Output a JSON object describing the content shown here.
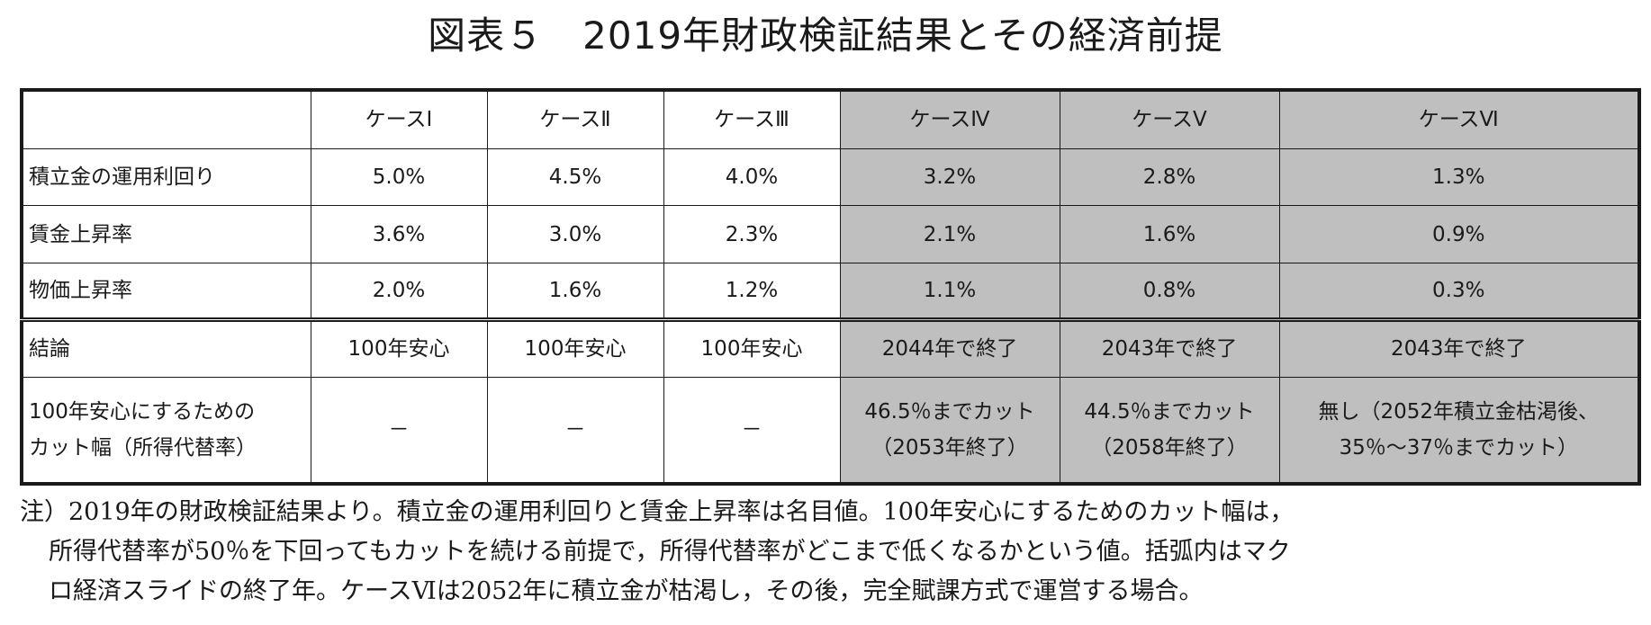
{
  "title": "図表５　2019年財政検証結果とその経済前提",
  "table": {
    "columns": [
      "",
      "ケースⅠ",
      "ケースⅡ",
      "ケースⅢ",
      "ケースⅣ",
      "ケースⅤ",
      "ケースⅥ"
    ],
    "rows": [
      {
        "label": "積立金の運用利回り",
        "values": [
          "5.0%",
          "4.5%",
          "4.0%",
          "3.2%",
          "2.8%",
          "1.3%"
        ]
      },
      {
        "label": "賃金上昇率",
        "values": [
          "3.6%",
          "3.0%",
          "2.3%",
          "2.1%",
          "1.6%",
          "0.9%"
        ]
      },
      {
        "label": "物価上昇率",
        "values": [
          "2.0%",
          "1.6%",
          "1.2%",
          "1.1%",
          "0.8%",
          "0.3%"
        ]
      },
      {
        "label": "結論",
        "values": [
          "100年安心",
          "100年安心",
          "100年安心",
          "2044年で終了",
          "2043年で終了",
          "2043年で終了"
        ]
      }
    ],
    "cut_row": {
      "label_line1": "100年安心にするための",
      "label_line2": "カット幅（所得代替率）",
      "values": [
        {
          "line1": "－",
          "line2": ""
        },
        {
          "line1": "－",
          "line2": ""
        },
        {
          "line1": "－",
          "line2": ""
        },
        {
          "line1": "46.5％までカット",
          "line2": "（2053年終了）"
        },
        {
          "line1": "44.5％までカット",
          "line2": "（2058年終了）"
        },
        {
          "line1": "無し（2052年積立金枯渇後、",
          "line2": "35％～37％までカット）"
        }
      ]
    },
    "shade_color": "#bfbfbf"
  },
  "note": {
    "line1": "注）2019年の財政検証結果より。積立金の運用利回りと賃金上昇率は名目値。100年安心にするためのカット幅は，",
    "line2": "所得代替率が50％を下回ってもカットを続ける前提で，所得代替率がどこまで低くなるかという値。括弧内はマク",
    "line3": "ロ経済スライドの終了年。ケースⅥは2052年に積立金が枯渇し，その後，完全賦課方式で運営する場合。"
  }
}
